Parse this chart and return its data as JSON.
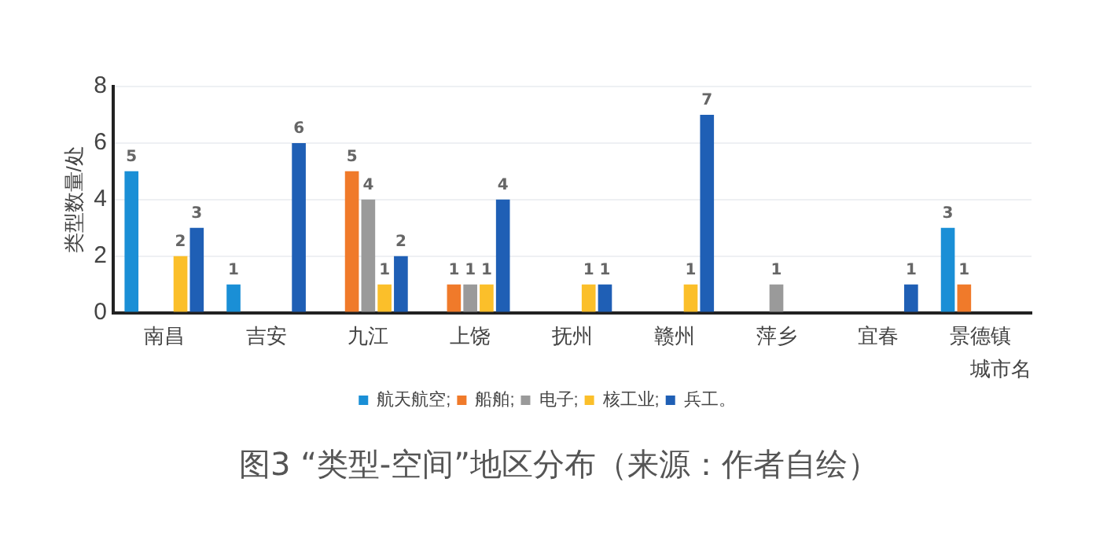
{
  "chart_data": {
    "type": "bar",
    "title": "图3 “类型-空间”地区分布（来源：作者自绘）",
    "xlabel": "城市名",
    "ylabel": "类型数量/处",
    "categories": [
      "南昌",
      "吉安",
      "九江",
      "上饶",
      "抚州",
      "赣州",
      "萍乡",
      "宜春",
      "景德镇"
    ],
    "series": [
      {
        "name": "航天航空;",
        "color": "#1a8fd6",
        "values": [
          5,
          1,
          null,
          null,
          null,
          null,
          null,
          null,
          3
        ],
        "value_labels": [
          "5",
          "1",
          null,
          null,
          null,
          null,
          null,
          null,
          "3"
        ]
      },
      {
        "name": "船舶;",
        "color": "#f07a2a",
        "values": [
          null,
          null,
          5,
          1,
          null,
          null,
          null,
          null,
          1
        ],
        "value_labels": [
          null,
          null,
          "5",
          "1",
          null,
          null,
          null,
          null,
          "1"
        ]
      },
      {
        "name": "电子;",
        "color": "#9a9a9a",
        "values": [
          null,
          null,
          4,
          1,
          null,
          null,
          1,
          null,
          null
        ],
        "value_labels": [
          null,
          null,
          "4",
          "1",
          null,
          null,
          "1",
          null,
          null
        ]
      },
      {
        "name": "核工业;",
        "color": "#fbbf2a",
        "values": [
          2,
          null,
          1,
          1,
          1,
          1,
          null,
          null,
          null
        ],
        "value_labels": [
          "2",
          null,
          "1",
          "1",
          "1",
          "1",
          null,
          null,
          null
        ]
      },
      {
        "name": "兵工。",
        "color": "#1f5fb5",
        "values": [
          3,
          6,
          2,
          4,
          1,
          7,
          null,
          1,
          null
        ],
        "value_labels": [
          "3",
          "6",
          "2",
          "4",
          "1",
          "7",
          null,
          "1",
          null
        ]
      }
    ],
    "ylim": [
      0,
      8
    ],
    "yticks": [
      0,
      2,
      4,
      6,
      8
    ],
    "grid": "y",
    "legend": "bottom"
  }
}
